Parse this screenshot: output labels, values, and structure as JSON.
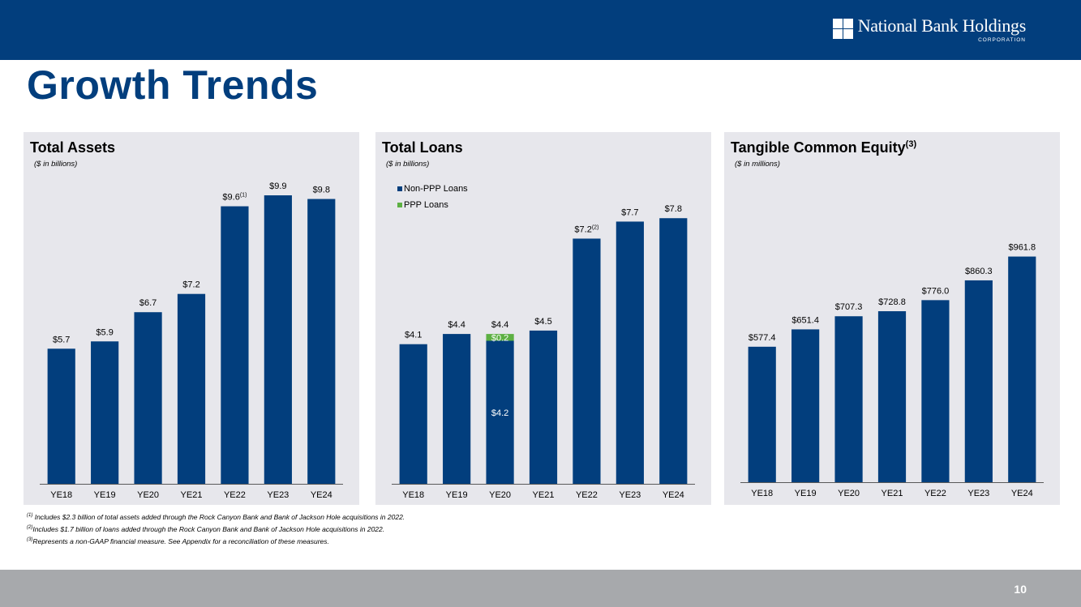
{
  "header": {
    "logo_name": "National Bank Holdings",
    "logo_sub": "CORPORATION"
  },
  "title": "Growth Trends",
  "colors": {
    "navy": "#023e7d",
    "green": "#5db043",
    "panel": "#e7e7ec",
    "footer": "#a7a9ac"
  },
  "chart_data": [
    {
      "type": "bar",
      "title": "Total Assets",
      "title_sup": "",
      "unit": "($ in billions)",
      "categories": [
        "YE18",
        "YE19",
        "YE20",
        "YE21",
        "YE22",
        "YE23",
        "YE24"
      ],
      "values": [
        5.7,
        5.9,
        6.7,
        7.2,
        9.6,
        9.9,
        9.8
      ],
      "labels": [
        "$5.7",
        "$5.9",
        "$6.7",
        "$7.2",
        "$9.6",
        "$9.9",
        "$9.8"
      ],
      "label_sups": [
        "",
        "",
        "",
        "",
        "(1)",
        "",
        ""
      ],
      "ylim": [
        2.0,
        10.3
      ]
    },
    {
      "type": "bar",
      "stacked": true,
      "title": "Total Loans",
      "title_sup": "",
      "unit": "($ in billions)",
      "categories": [
        "YE18",
        "YE19",
        "YE20",
        "YE21",
        "YE22",
        "YE23",
        "YE24"
      ],
      "series": [
        {
          "name": "Non-PPP Loans",
          "values": [
            4.1,
            4.4,
            4.2,
            4.5,
            7.2,
            7.7,
            7.8
          ]
        },
        {
          "name": "PPP Loans",
          "values": [
            0,
            0,
            0.2,
            0,
            0,
            0,
            0
          ]
        }
      ],
      "total_labels": [
        "$4.1",
        "$4.4",
        "$4.4",
        "$4.5",
        "$7.2",
        "$7.7",
        "$7.8"
      ],
      "label_sups": [
        "",
        "",
        "",
        "",
        "(2)",
        "",
        ""
      ],
      "segment_labels": [
        {
          "category": "YE20",
          "series": "Non-PPP Loans",
          "text": "$4.2"
        },
        {
          "category": "YE20",
          "series": "PPP Loans",
          "text": "$0.2"
        }
      ],
      "ylim": [
        0,
        8.9
      ]
    },
    {
      "type": "bar",
      "title": "Tangible Common Equity",
      "title_sup": "(3)",
      "unit": "($ in millions)",
      "categories": [
        "YE18",
        "YE19",
        "YE20",
        "YE21",
        "YE22",
        "YE23",
        "YE24"
      ],
      "values": [
        577.4,
        651.4,
        707.3,
        728.8,
        776.0,
        860.3,
        961.8
      ],
      "labels": [
        "$577.4",
        "$651.4",
        "$707.3",
        "$728.8",
        "$776.0",
        "$860.3",
        "$961.8"
      ],
      "label_sups": [
        "",
        "",
        "",
        "",
        "",
        "",
        ""
      ],
      "ylim": [
        0,
        1285
      ]
    }
  ],
  "footnotes": [
    {
      "marker": "(1)",
      "text": " Includes $2.3 billion of total assets added through the Rock Canyon Bank and Bank of Jackson Hole acquisitions in 2022."
    },
    {
      "marker": "(2)",
      "text": "Includes $1.7 billion of loans added through the Rock Canyon Bank and Bank of Jackson Hole acquisitions in 2022."
    },
    {
      "marker": "(3)",
      "text": "Represents a non-GAAP financial measure.  See Appendix for a reconciliation of these measures."
    }
  ],
  "page_number": "10"
}
